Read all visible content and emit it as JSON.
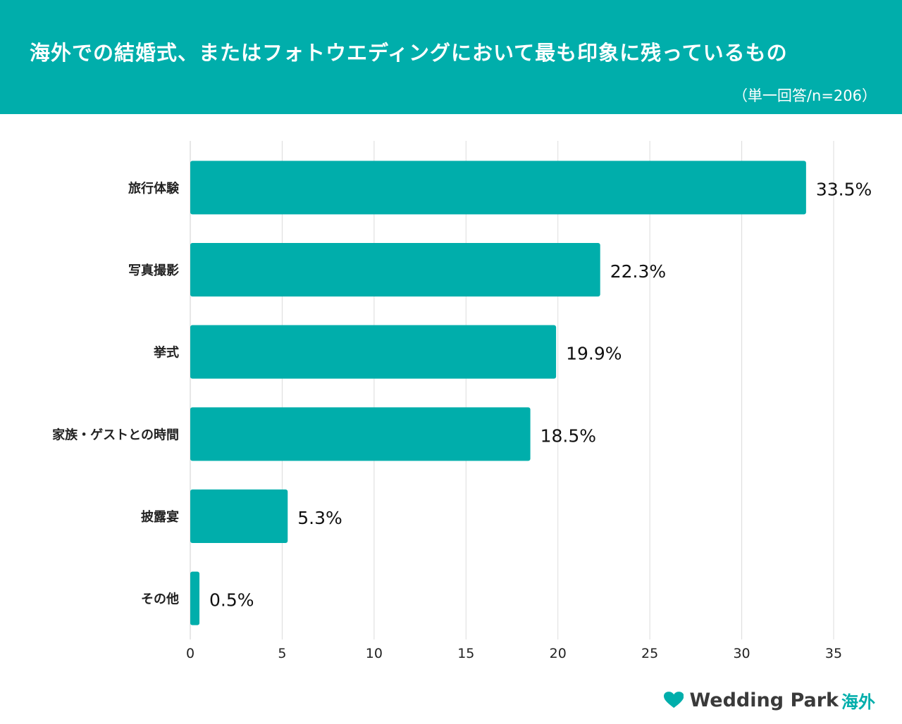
{
  "header": {
    "title": "海外での結婚式、またはフォトウエディングにおいて最も印象に残っているもの",
    "subtitle": "（単一回答/n=206）"
  },
  "chart_data": {
    "type": "bar",
    "orientation": "horizontal",
    "categories": [
      "旅行体験",
      "写真撮影",
      "挙式",
      "家族・ゲストとの時間",
      "披露宴",
      "その他"
    ],
    "values": [
      33.5,
      22.3,
      19.9,
      18.5,
      5.3,
      0.5
    ],
    "value_labels": [
      "33.5%",
      "22.3%",
      "19.9%",
      "18.5%",
      "5.3%",
      "0.5%"
    ],
    "xlim": [
      0,
      35
    ],
    "xticks": [
      "0",
      "5",
      "10",
      "15",
      "20",
      "25",
      "30",
      "35"
    ],
    "grid": "vertical",
    "bar_color": "#00aeab"
  },
  "logo": {
    "brand": "Wedding Park",
    "suffix": "海外",
    "icon": "heart-icon",
    "color": "#00aeab"
  }
}
